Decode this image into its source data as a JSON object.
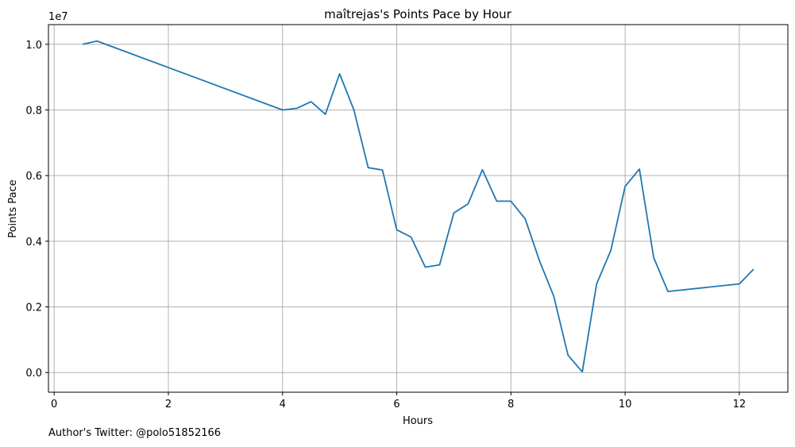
{
  "chart_data": {
    "type": "line",
    "title": "maîtrejas's Points Pace by Hour",
    "xlabel": "Hours",
    "ylabel": "Points Pace",
    "y_multiplier_label": "1e7",
    "xlim": [
      -0.1,
      12.85
    ],
    "ylim": [
      -0.06,
      1.06
    ],
    "y_scale_factor": 10000000,
    "x_ticks": [
      0,
      2,
      4,
      6,
      8,
      10,
      12
    ],
    "x_tick_labels": [
      "0",
      "2",
      "4",
      "6",
      "8",
      "10",
      "12"
    ],
    "y_ticks": [
      0.0,
      0.2,
      0.4,
      0.6,
      0.8,
      1.0
    ],
    "y_tick_labels": [
      "0.0",
      "0.2",
      "0.4",
      "0.6",
      "0.8",
      "1.0"
    ],
    "grid": true,
    "series": [
      {
        "color": "#1f77b4",
        "x": [
          0.5,
          0.75,
          4.0,
          4.25,
          4.5,
          4.75,
          5.0,
          5.25,
          5.5,
          5.75,
          6.0,
          6.25,
          6.5,
          6.75,
          7.0,
          7.25,
          7.5,
          7.75,
          8.0,
          8.25,
          8.5,
          8.75,
          9.0,
          9.25,
          9.5,
          9.75,
          10.0,
          10.25,
          10.5,
          10.75,
          12.0,
          12.25
        ],
        "y": [
          1.0,
          1.01,
          0.8,
          0.805,
          0.825,
          0.787,
          0.91,
          0.8,
          0.624,
          0.617,
          0.435,
          0.413,
          0.321,
          0.328,
          0.486,
          0.514,
          0.618,
          0.522,
          0.522,
          0.468,
          0.34,
          0.233,
          0.053,
          0.002,
          0.27,
          0.372,
          0.567,
          0.62,
          0.35,
          0.247,
          0.27,
          0.315
        ]
      }
    ]
  },
  "footnote": "Author's Twitter: @polo51852166"
}
